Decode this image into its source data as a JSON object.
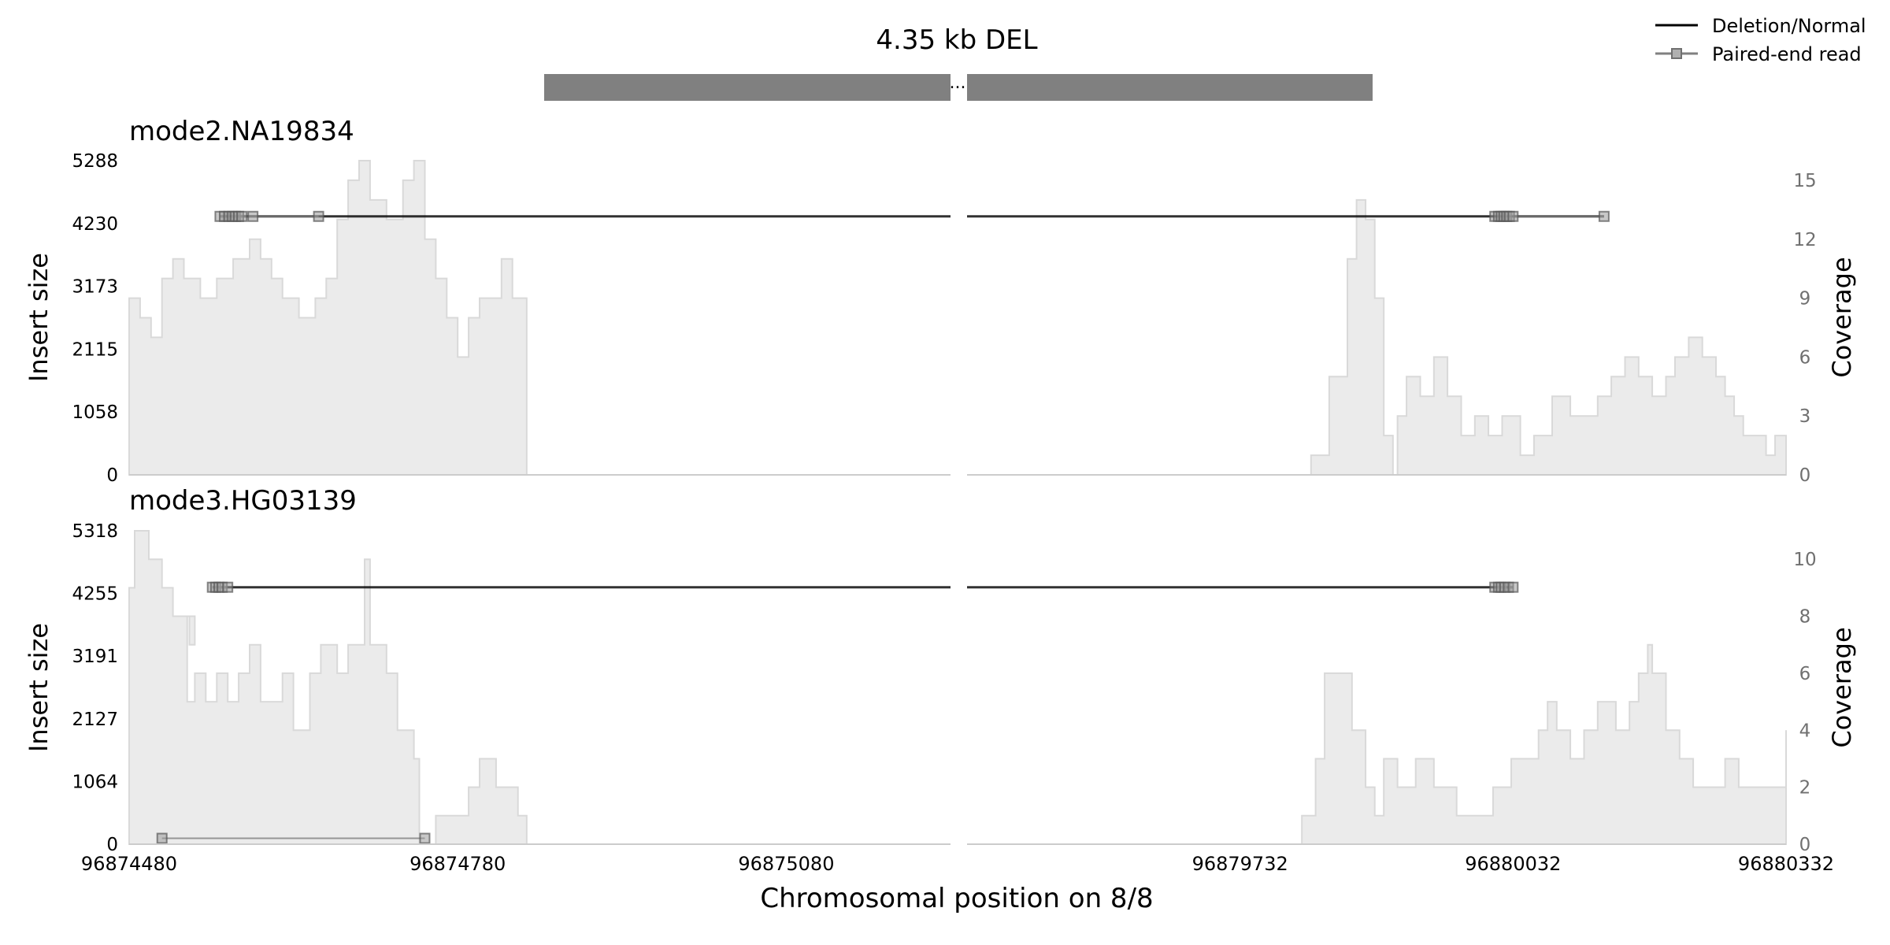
{
  "chart_data": {
    "type": "area",
    "title": "4.35 kb DEL",
    "xlabel": "Chromosomal position on 8/8",
    "legend": {
      "placement": "top-right",
      "entries": [
        {
          "label": "Deletion/Normal",
          "style": "solid-line",
          "color": "#000000"
        },
        {
          "label": "Paired-end read",
          "style": "line-with-square-markers",
          "color": "#808080"
        }
      ]
    },
    "deletion_bar": {
      "color": "#808080",
      "gap_marker": "..."
    },
    "x_segments": [
      {
        "range": [
          96874480,
          96875230
        ],
        "ticks": [
          96874480,
          96874780,
          96875080
        ]
      },
      {
        "range": [
          96879432,
          96880332
        ],
        "ticks": [
          96879732,
          96880032,
          96880332
        ]
      }
    ],
    "panels": [
      {
        "name": "mode2.NA19834",
        "ylabel_left": "Insert size",
        "ylabel_right": "Coverage",
        "insert_ticks": [
          "0",
          "1058",
          "2115",
          "3173",
          "4230",
          "5288"
        ],
        "coverage_ticks": [
          "0",
          "3",
          "6",
          "9",
          "12",
          "15"
        ],
        "coverage_max": 16,
        "coverage_color": "#ebebeb",
        "coverage_line_color": "#d9d9d9",
        "coverage": [
          {
            "x": 96874480,
            "y": 9
          },
          {
            "x": 96874490,
            "y": 8
          },
          {
            "x": 96874500,
            "y": 7
          },
          {
            "x": 96874510,
            "y": 10
          },
          {
            "x": 96874520,
            "y": 11
          },
          {
            "x": 96874530,
            "y": 10
          },
          {
            "x": 96874545,
            "y": 9
          },
          {
            "x": 96874560,
            "y": 10
          },
          {
            "x": 96874575,
            "y": 11
          },
          {
            "x": 96874590,
            "y": 12
          },
          {
            "x": 96874600,
            "y": 11
          },
          {
            "x": 96874610,
            "y": 10
          },
          {
            "x": 96874620,
            "y": 9
          },
          {
            "x": 96874635,
            "y": 8
          },
          {
            "x": 96874650,
            "y": 9
          },
          {
            "x": 96874660,
            "y": 10
          },
          {
            "x": 96874670,
            "y": 13
          },
          {
            "x": 96874680,
            "y": 15
          },
          {
            "x": 96874690,
            "y": 16
          },
          {
            "x": 96874700,
            "y": 14
          },
          {
            "x": 96874715,
            "y": 13
          },
          {
            "x": 96874730,
            "y": 15
          },
          {
            "x": 96874740,
            "y": 16
          },
          {
            "x": 96874750,
            "y": 12
          },
          {
            "x": 96874760,
            "y": 10
          },
          {
            "x": 96874770,
            "y": 8
          },
          {
            "x": 96874780,
            "y": 6
          },
          {
            "x": 96874790,
            "y": 8
          },
          {
            "x": 96874800,
            "y": 9
          },
          {
            "x": 96874810,
            "y": 9
          },
          {
            "x": 96874820,
            "y": 11
          },
          {
            "x": 96874830,
            "y": 9
          },
          {
            "x": 96874843,
            "y": 0
          },
          {
            "x": 96879432,
            "y": 0
          },
          {
            "x": 96879810,
            "y": 1
          },
          {
            "x": 96879830,
            "y": 5
          },
          {
            "x": 96879850,
            "y": 11
          },
          {
            "x": 96879860,
            "y": 14
          },
          {
            "x": 96879870,
            "y": 13
          },
          {
            "x": 96879880,
            "y": 9
          },
          {
            "x": 96879890,
            "y": 2
          },
          {
            "x": 96879900,
            "y": 0
          },
          {
            "x": 96879905,
            "y": 3
          },
          {
            "x": 96879915,
            "y": 5
          },
          {
            "x": 96879930,
            "y": 4
          },
          {
            "x": 96879945,
            "y": 6
          },
          {
            "x": 96879960,
            "y": 4
          },
          {
            "x": 96879975,
            "y": 2
          },
          {
            "x": 96879990,
            "y": 3
          },
          {
            "x": 96880005,
            "y": 2
          },
          {
            "x": 96880020,
            "y": 3
          },
          {
            "x": 96880040,
            "y": 1
          },
          {
            "x": 96880055,
            "y": 2
          },
          {
            "x": 96880075,
            "y": 4
          },
          {
            "x": 96880095,
            "y": 3
          },
          {
            "x": 96880110,
            "y": 3
          },
          {
            "x": 96880125,
            "y": 4
          },
          {
            "x": 96880140,
            "y": 5
          },
          {
            "x": 96880155,
            "y": 6
          },
          {
            "x": 96880170,
            "y": 5
          },
          {
            "x": 96880185,
            "y": 4
          },
          {
            "x": 96880200,
            "y": 5
          },
          {
            "x": 96880210,
            "y": 6
          },
          {
            "x": 96880225,
            "y": 7
          },
          {
            "x": 96880240,
            "y": 6
          },
          {
            "x": 96880255,
            "y": 5
          },
          {
            "x": 96880265,
            "y": 4
          },
          {
            "x": 96880275,
            "y": 3
          },
          {
            "x": 96880285,
            "y": 2
          },
          {
            "x": 96880300,
            "y": 2
          },
          {
            "x": 96880310,
            "y": 1
          },
          {
            "x": 96880320,
            "y": 2
          },
          {
            "x": 96880332,
            "y": 1
          }
        ],
        "deletion_line_insert": 4350,
        "reads": [
          {
            "start": 96874563,
            "end": 96874653,
            "insert": 4350
          },
          {
            "start": 96880032,
            "end": 96880132,
            "insert": 4350
          }
        ],
        "read_markers": [
          {
            "x": 96874563,
            "insert": 4350
          },
          {
            "x": 96874567,
            "insert": 4350
          },
          {
            "x": 96874571,
            "insert": 4350
          },
          {
            "x": 96874574,
            "insert": 4350
          },
          {
            "x": 96874577,
            "insert": 4350
          },
          {
            "x": 96874580,
            "insert": 4350
          },
          {
            "x": 96874583,
            "insert": 4350
          },
          {
            "x": 96874593,
            "insert": 4350
          },
          {
            "x": 96874653,
            "insert": 4350
          },
          {
            "x": 96880012,
            "insert": 4350
          },
          {
            "x": 96880016,
            "insert": 4350
          },
          {
            "x": 96880019,
            "insert": 4350
          },
          {
            "x": 96880022,
            "insert": 4350
          },
          {
            "x": 96880025,
            "insert": 4350
          },
          {
            "x": 96880028,
            "insert": 4350
          },
          {
            "x": 96880032,
            "insert": 4350
          },
          {
            "x": 96880132,
            "insert": 4350
          }
        ]
      },
      {
        "name": "mode3.HG03139",
        "ylabel_left": "Insert size",
        "ylabel_right": "Coverage",
        "insert_ticks": [
          "0",
          "1064",
          "2127",
          "3191",
          "4255",
          "5318"
        ],
        "coverage_ticks": [
          "0",
          "2",
          "4",
          "6",
          "8",
          "10"
        ],
        "coverage_max": 11,
        "coverage_color": "#ebebeb",
        "coverage_line_color": "#d9d9d9",
        "coverage": [
          {
            "x": 96874480,
            "y": 9
          },
          {
            "x": 96874485,
            "y": 11
          },
          {
            "x": 96874498,
            "y": 10
          },
          {
            "x": 96874510,
            "y": 9
          },
          {
            "x": 96874520,
            "y": 8
          },
          {
            "x": 96874535,
            "y": 7
          },
          {
            "x": 96874540,
            "y": 8
          },
          {
            "x": 96874533,
            "y": 5
          },
          {
            "x": 96874540,
            "y": 6
          },
          {
            "x": 96874550,
            "y": 5
          },
          {
            "x": 96874560,
            "y": 6
          },
          {
            "x": 96874570,
            "y": 5
          },
          {
            "x": 96874580,
            "y": 6
          },
          {
            "x": 96874590,
            "y": 7
          },
          {
            "x": 96874600,
            "y": 5
          },
          {
            "x": 96874610,
            "y": 5
          },
          {
            "x": 96874620,
            "y": 6
          },
          {
            "x": 96874630,
            "y": 4
          },
          {
            "x": 96874645,
            "y": 6
          },
          {
            "x": 96874655,
            "y": 7
          },
          {
            "x": 96874670,
            "y": 6
          },
          {
            "x": 96874680,
            "y": 7
          },
          {
            "x": 96874690,
            "y": 7
          },
          {
            "x": 96874695,
            "y": 10
          },
          {
            "x": 96874700,
            "y": 7
          },
          {
            "x": 96874715,
            "y": 6
          },
          {
            "x": 96874725,
            "y": 4
          },
          {
            "x": 96874740,
            "y": 3
          },
          {
            "x": 96874745,
            "y": 0
          },
          {
            "x": 96874760,
            "y": 1
          },
          {
            "x": 96874780,
            "y": 1
          },
          {
            "x": 96874790,
            "y": 2
          },
          {
            "x": 96874800,
            "y": 3
          },
          {
            "x": 96874815,
            "y": 2
          },
          {
            "x": 96874835,
            "y": 1
          },
          {
            "x": 96874843,
            "y": 0
          },
          {
            "x": 96879432,
            "y": 0
          },
          {
            "x": 96879800,
            "y": 1
          },
          {
            "x": 96879815,
            "y": 3
          },
          {
            "x": 96879825,
            "y": 6
          },
          {
            "x": 96879855,
            "y": 4
          },
          {
            "x": 96879870,
            "y": 2
          },
          {
            "x": 96879880,
            "y": 1
          },
          {
            "x": 96879890,
            "y": 3
          },
          {
            "x": 96879905,
            "y": 2
          },
          {
            "x": 96879925,
            "y": 3
          },
          {
            "x": 96879945,
            "y": 2
          },
          {
            "x": 96879970,
            "y": 1
          },
          {
            "x": 96880010,
            "y": 2
          },
          {
            "x": 96880030,
            "y": 3
          },
          {
            "x": 96880045,
            "y": 3
          },
          {
            "x": 96880060,
            "y": 4
          },
          {
            "x": 96880070,
            "y": 5
          },
          {
            "x": 96880080,
            "y": 4
          },
          {
            "x": 96880095,
            "y": 3
          },
          {
            "x": 96880110,
            "y": 4
          },
          {
            "x": 96880125,
            "y": 5
          },
          {
            "x": 96880145,
            "y": 4
          },
          {
            "x": 96880160,
            "y": 5
          },
          {
            "x": 96880170,
            "y": 6
          },
          {
            "x": 96880180,
            "y": 7
          },
          {
            "x": 96880185,
            "y": 6
          },
          {
            "x": 96880200,
            "y": 4
          },
          {
            "x": 96880215,
            "y": 3
          },
          {
            "x": 96880230,
            "y": 2
          },
          {
            "x": 96880250,
            "y": 2
          },
          {
            "x": 96880265,
            "y": 3
          },
          {
            "x": 96880280,
            "y": 2
          },
          {
            "x": 96880300,
            "y": 2
          },
          {
            "x": 96880332,
            "y": 4
          }
        ],
        "deletion_line_insert": 4360,
        "reads": [
          {
            "start": 96874556,
            "end": 96874570,
            "insert": 4360
          },
          {
            "start": 96880012,
            "end": 96880032,
            "insert": 4360
          },
          {
            "start": 96874510,
            "end": 96874750,
            "insert": 100
          }
        ],
        "read_markers": [
          {
            "x": 96874556,
            "insert": 4360
          },
          {
            "x": 96874559,
            "insert": 4360
          },
          {
            "x": 96874562,
            "insert": 4360
          },
          {
            "x": 96874565,
            "insert": 4360
          },
          {
            "x": 96874570,
            "insert": 4360
          },
          {
            "x": 96880012,
            "insert": 4360
          },
          {
            "x": 96880016,
            "insert": 4360
          },
          {
            "x": 96880019,
            "insert": 4360
          },
          {
            "x": 96880023,
            "insert": 4360
          },
          {
            "x": 96880027,
            "insert": 4360
          },
          {
            "x": 96880032,
            "insert": 4360
          },
          {
            "x": 96874510,
            "insert": 100
          },
          {
            "x": 96874750,
            "insert": 100
          }
        ]
      }
    ]
  }
}
